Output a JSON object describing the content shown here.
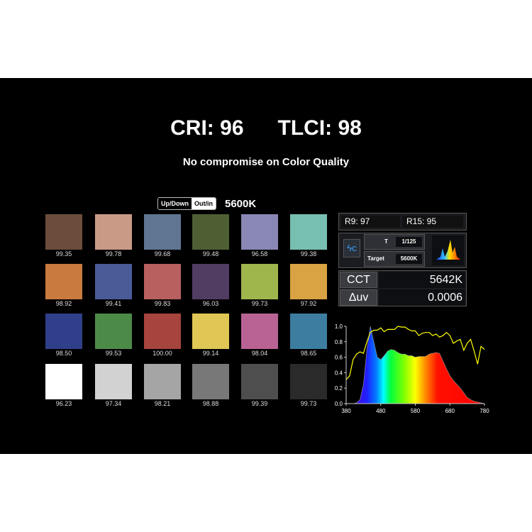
{
  "header": {
    "cri": "CRI: 96",
    "tlci": "TLCI: 98",
    "subtitle": "No compromise on Color Quality"
  },
  "toggle": {
    "left": "Up/Down",
    "right": "Out/in"
  },
  "target_cct": "5600K",
  "swatches": [
    {
      "color": "#6b4c3d",
      "value": "99.35"
    },
    {
      "color": "#c99a86",
      "value": "99.78"
    },
    {
      "color": "#607592",
      "value": "99.68"
    },
    {
      "color": "#4e5f34",
      "value": "99.48"
    },
    {
      "color": "#8887b5",
      "value": "96.58"
    },
    {
      "color": "#77bfb0",
      "value": "99.38"
    },
    {
      "color": "#c97a3f",
      "value": "98.92"
    },
    {
      "color": "#4a5b98",
      "value": "99.41"
    },
    {
      "color": "#b8605f",
      "value": "99.83"
    },
    {
      "color": "#513c62",
      "value": "96.03"
    },
    {
      "color": "#9fb64d",
      "value": "99.73"
    },
    {
      "color": "#d9a242",
      "value": "97.92"
    },
    {
      "color": "#303f8a",
      "value": "98.50"
    },
    {
      "color": "#4c8a48",
      "value": "99.53"
    },
    {
      "color": "#a6443e",
      "value": "100.00"
    },
    {
      "color": "#e0c654",
      "value": "99.14"
    },
    {
      "color": "#b86394",
      "value": "98.04"
    },
    {
      "color": "#3d7ea0",
      "value": "98.65"
    },
    {
      "color": "#ffffff",
      "value": "96.23"
    },
    {
      "color": "#d2d2d2",
      "value": "97.34"
    },
    {
      "color": "#a5a5a5",
      "value": "98.21"
    },
    {
      "color": "#787878",
      "value": "98.88"
    },
    {
      "color": "#4e4e4e",
      "value": "99.39"
    },
    {
      "color": "#2a2a2a",
      "value": "99.73"
    }
  ],
  "meter": {
    "r9": "R9: 97",
    "r15": "R15: 95",
    "t_label": "T",
    "t_value": "1/125",
    "target_label": "Target",
    "target_value": "5600K",
    "mode_icon": "flash-c-icon",
    "cct_label": "CCT",
    "cct_value": "5642K",
    "duv_label": "Δuv",
    "duv_value": "0.0006"
  },
  "chart_data": {
    "type": "area",
    "xlim": [
      380,
      780
    ],
    "ylim": [
      0,
      1.0
    ],
    "xticks": [
      "380",
      "480",
      "580",
      "680",
      "780"
    ],
    "yticks": [
      "0.0",
      "0.2",
      "0.4",
      "0.6",
      "0.8",
      "1.0"
    ],
    "grid": false,
    "x": [
      380,
      390,
      400,
      410,
      420,
      430,
      440,
      450,
      460,
      470,
      480,
      490,
      500,
      510,
      520,
      530,
      540,
      550,
      560,
      570,
      580,
      590,
      600,
      610,
      620,
      630,
      640,
      650,
      660,
      670,
      680,
      690,
      700,
      710,
      720,
      730,
      740,
      750,
      760,
      770,
      780
    ],
    "series": [
      {
        "style": "spectrum-fill",
        "values": [
          0,
          0,
          0,
          0.01,
          0.05,
          0.25,
          0.7,
          1.0,
          0.8,
          0.6,
          0.57,
          0.62,
          0.68,
          0.7,
          0.69,
          0.66,
          0.64,
          0.64,
          0.62,
          0.62,
          0.6,
          0.61,
          0.61,
          0.61,
          0.64,
          0.65,
          0.66,
          0.65,
          0.55,
          0.45,
          0.36,
          0.3,
          0.25,
          0.2,
          0.14,
          0.08,
          0.05,
          0.03,
          0.02,
          0.01,
          0
        ]
      },
      {
        "style": "line",
        "color": "#ffff00",
        "values": [
          0.31,
          0.36,
          0.57,
          0.64,
          0.67,
          0.65,
          0.8,
          0.92,
          0.95,
          0.95,
          0.98,
          0.93,
          0.96,
          0.96,
          0.96,
          1.0,
          0.99,
          0.99,
          0.96,
          0.94,
          0.94,
          0.88,
          0.91,
          0.92,
          0.92,
          0.88,
          0.9,
          0.86,
          0.88,
          0.92,
          0.88,
          0.78,
          0.81,
          0.83,
          0.69,
          0.78,
          0.83,
          0.68,
          0.51,
          0.74,
          0.7
        ]
      }
    ]
  }
}
